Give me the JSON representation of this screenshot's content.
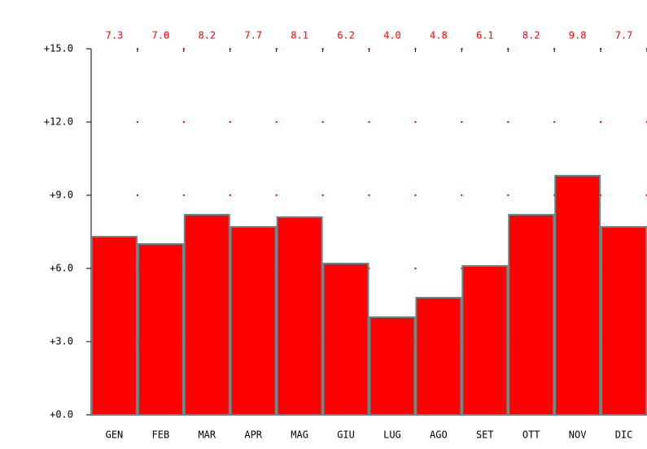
{
  "chart_data": {
    "type": "bar",
    "categories": [
      "GEN",
      "FEB",
      "MAR",
      "APR",
      "MAG",
      "GIU",
      "LUG",
      "AGO",
      "SET",
      "OTT",
      "NOV",
      "DIC"
    ],
    "values": [
      7.3,
      7.0,
      8.2,
      7.7,
      8.1,
      6.2,
      4.0,
      4.8,
      6.1,
      8.2,
      9.8,
      7.7
    ],
    "value_labels": [
      "7.3",
      "7.0",
      "8.2",
      "7.7",
      "8.1",
      "6.2",
      "4.0",
      "4.8",
      "6.1",
      "8.2",
      "9.8",
      "7.7"
    ],
    "color": "#ff0000",
    "ylim": [
      0,
      15
    ],
    "yticks": [
      {
        "value": 0,
        "label": "+0.0"
      },
      {
        "value": 3,
        "label": "+3.0"
      },
      {
        "value": 6,
        "label": "+6.0"
      },
      {
        "value": 9,
        "label": "+9.0"
      },
      {
        "value": 12,
        "label": "+12.0"
      },
      {
        "value": 15,
        "label": "+15.0"
      }
    ],
    "grid": true
  }
}
